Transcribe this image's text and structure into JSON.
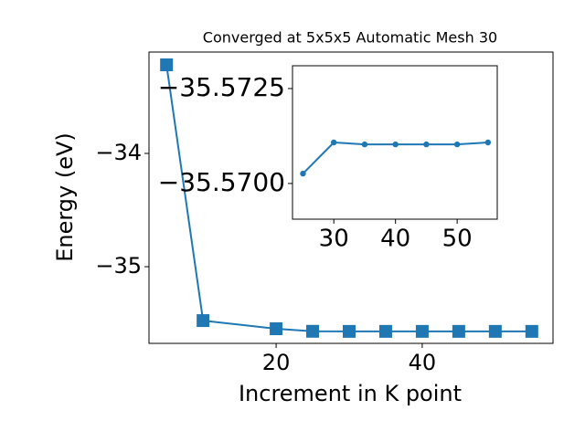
{
  "chart_data": [
    {
      "type": "line",
      "title": "Converged at 5x5x5 Automatic Mesh 30",
      "x_label": "Increment in K point",
      "y_label": "Energy (eV)",
      "marker": "square",
      "series": [
        {
          "color": "#1f77b4",
          "x": [
            5,
            10,
            20,
            25,
            30,
            35,
            40,
            45,
            50,
            55
          ],
          "values": [
            -33.218,
            -35.476,
            -35.548,
            -35.5703,
            -35.5711,
            -35.571,
            -35.571,
            -35.571,
            -35.571,
            -35.5711
          ]
        }
      ],
      "xlim": [
        2.6,
        57.9
      ],
      "xticks": [
        20,
        40
      ],
      "ylim": [
        -35.677,
        -33.105
      ],
      "yticks": [
        {
          "value": -35,
          "label": "−35"
        },
        {
          "value": -34,
          "label": "−34"
        }
      ]
    },
    {
      "type": "line",
      "marker": "circle",
      "series": [
        {
          "color": "#1f77b4",
          "x": [
            25,
            30,
            35,
            40,
            45,
            50,
            55
          ],
          "values": [
            -35.57026,
            -35.57108,
            -35.57103,
            -35.57103,
            -35.57103,
            -35.57103,
            -35.57108
          ]
        }
      ],
      "xlim": [
        23.3,
        56.5
      ],
      "xticks": [
        30,
        40,
        50
      ],
      "ylim": [
        -35.56906,
        -35.5731
      ],
      "yticks": [
        {
          "value": -35.57,
          "label": "−35.5700"
        },
        {
          "value": -35.5725,
          "label": "−35.5725"
        }
      ]
    }
  ]
}
